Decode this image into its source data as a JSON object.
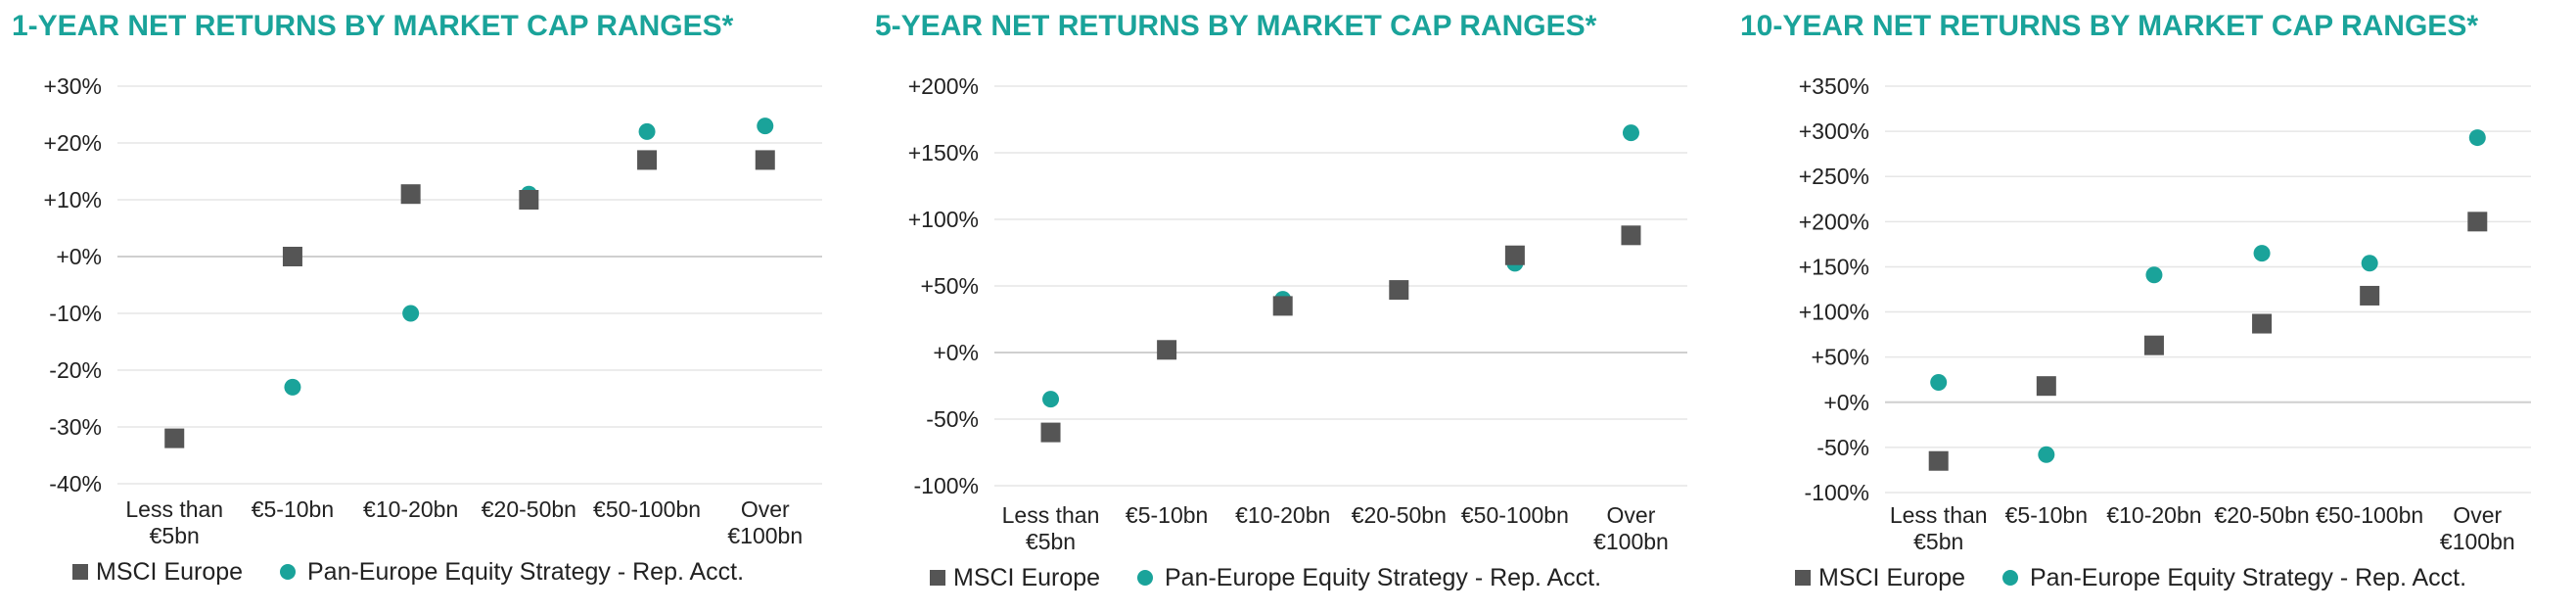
{
  "colors": {
    "msci": "#555555",
    "strategy": "#1aa39a",
    "title": "#1aa39a",
    "grid": "#e6e6e6",
    "zero": "#cfcfcf"
  },
  "legend": {
    "series_1": "MSCI Europe",
    "series_2": "Pan-Europe Equity Strategy - Rep. Acct."
  },
  "chart_data": [
    {
      "type": "scatter",
      "title": "1-YEAR NET RETURNS BY MARKET CAP RANGES*",
      "categories": [
        [
          "Less than",
          "€5bn"
        ],
        [
          "€5-10bn"
        ],
        [
          "€10-20bn"
        ],
        [
          "€20-50bn"
        ],
        [
          "€50-100bn"
        ],
        [
          "Over",
          "€100bn"
        ]
      ],
      "ylim": [
        -40,
        30
      ],
      "yticks": [
        30,
        20,
        10,
        0,
        -10,
        -20,
        -30,
        -40
      ],
      "ytick_labels": [
        "+30%",
        "+20%",
        "+10%",
        "+0%",
        "-10%",
        "-20%",
        "-30%",
        "-40%"
      ],
      "grid": true,
      "legend_position": "bottom",
      "series": [
        {
          "name": "MSCI Europe",
          "marker": "square",
          "values": [
            -32,
            0,
            11,
            10,
            17,
            17
          ]
        },
        {
          "name": "Pan-Europe Equity Strategy - Rep. Acct.",
          "marker": "circle",
          "values": [
            -32,
            -23,
            -10,
            11,
            22,
            23
          ]
        }
      ]
    },
    {
      "type": "scatter",
      "title": "5-YEAR NET RETURNS BY MARKET CAP RANGES*",
      "categories": [
        [
          "Less than",
          "€5bn"
        ],
        [
          "€5-10bn"
        ],
        [
          "€10-20bn"
        ],
        [
          "€20-50bn"
        ],
        [
          "€50-100bn"
        ],
        [
          "Over",
          "€100bn"
        ]
      ],
      "ylim": [
        -100,
        200
      ],
      "yticks": [
        200,
        150,
        100,
        50,
        0,
        -50,
        -100
      ],
      "ytick_labels": [
        "+200%",
        "+150%",
        "+100%",
        "+50%",
        "+0%",
        "-50%",
        "-100%"
      ],
      "grid": true,
      "legend_position": "bottom",
      "series": [
        {
          "name": "MSCI Europe",
          "marker": "square",
          "values": [
            -60,
            2,
            35,
            47,
            73,
            88
          ]
        },
        {
          "name": "Pan-Europe Equity Strategy - Rep. Acct.",
          "marker": "circle",
          "values": [
            -35,
            2,
            40,
            47,
            67,
            165
          ]
        }
      ]
    },
    {
      "type": "scatter",
      "title": "10-YEAR NET RETURNS BY MARKET CAP RANGES*",
      "categories": [
        [
          "Less than",
          "€5bn"
        ],
        [
          "€5-10bn"
        ],
        [
          "€10-20bn"
        ],
        [
          "€20-50bn"
        ],
        [
          "€50-100bn"
        ],
        [
          "Over",
          "€100bn"
        ]
      ],
      "ylim": [
        -100,
        350
      ],
      "yticks": [
        350,
        300,
        250,
        200,
        150,
        100,
        50,
        0,
        -50,
        -100
      ],
      "ytick_labels": [
        "+350%",
        "+300%",
        "+250%",
        "+200%",
        "+150%",
        "+100%",
        "+50%",
        "+0%",
        "-50%",
        "-100%"
      ],
      "grid": true,
      "legend_position": "bottom",
      "series": [
        {
          "name": "MSCI Europe",
          "marker": "square",
          "values": [
            -65,
            18,
            63,
            87,
            118,
            200
          ]
        },
        {
          "name": "Pan-Europe Equity Strategy - Rep. Acct.",
          "marker": "circle",
          "values": [
            22,
            -58,
            141,
            165,
            154,
            293
          ]
        }
      ]
    }
  ]
}
